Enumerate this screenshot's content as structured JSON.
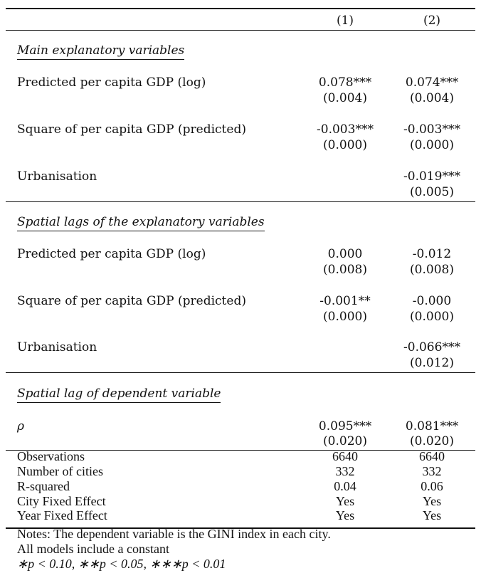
{
  "header": {
    "col1": "(1)",
    "col2": "(2)"
  },
  "sections": [
    {
      "title": "Main explanatory variables",
      "rows": [
        {
          "label": "Predicted per capita GDP (log)",
          "c1": "0.078***",
          "c1se": "(0.004)",
          "c2": "0.074***",
          "c2se": "(0.004)"
        },
        {
          "label": "Square of per capita GDP (predicted)",
          "c1": "-0.003***",
          "c1se": "(0.000)",
          "c2": "-0.003***",
          "c2se": "(0.000)"
        },
        {
          "label": "Urbanisation",
          "c1": "",
          "c1se": "",
          "c2": "-0.019***",
          "c2se": "(0.005)"
        }
      ]
    },
    {
      "title": "Spatial lags of the explanatory variables",
      "rows": [
        {
          "label": "Predicted per capita GDP (log)",
          "c1": "0.000",
          "c1se": "(0.008)",
          "c2": "-0.012",
          "c2se": "(0.008)"
        },
        {
          "label": "Square of per capita GDP (predicted)",
          "c1": "-0.001**",
          "c1se": "(0.000)",
          "c2": "-0.000",
          "c2se": "(0.000)"
        },
        {
          "label": "Urbanisation",
          "c1": "",
          "c1se": "",
          "c2": "-0.066***",
          "c2se": "(0.012)"
        }
      ]
    },
    {
      "title": "Spatial lag of dependent variable",
      "rows": [
        {
          "label": "ρ",
          "c1": "0.095***",
          "c1se": "(0.020)",
          "c2": "0.081***",
          "c2se": "(0.020)"
        }
      ]
    }
  ],
  "stats": [
    {
      "label": "Observations",
      "c1": "6640",
      "c2": "6640"
    },
    {
      "label": "Number of cities",
      "c1": "332",
      "c2": "332"
    },
    {
      "label": "R-squared",
      "c1": "0.04",
      "c2": "0.06"
    },
    {
      "label": "City Fixed Effect",
      "c1": "Yes",
      "c2": "Yes"
    },
    {
      "label": "Year Fixed Effect",
      "c1": "Yes",
      "c2": "Yes"
    }
  ],
  "notes": [
    "Notes: The dependent variable is the GINI index in each city.",
    "All models include a constant",
    "∗p < 0.10, ∗∗p < 0.05, ∗∗∗p < 0.01"
  ]
}
